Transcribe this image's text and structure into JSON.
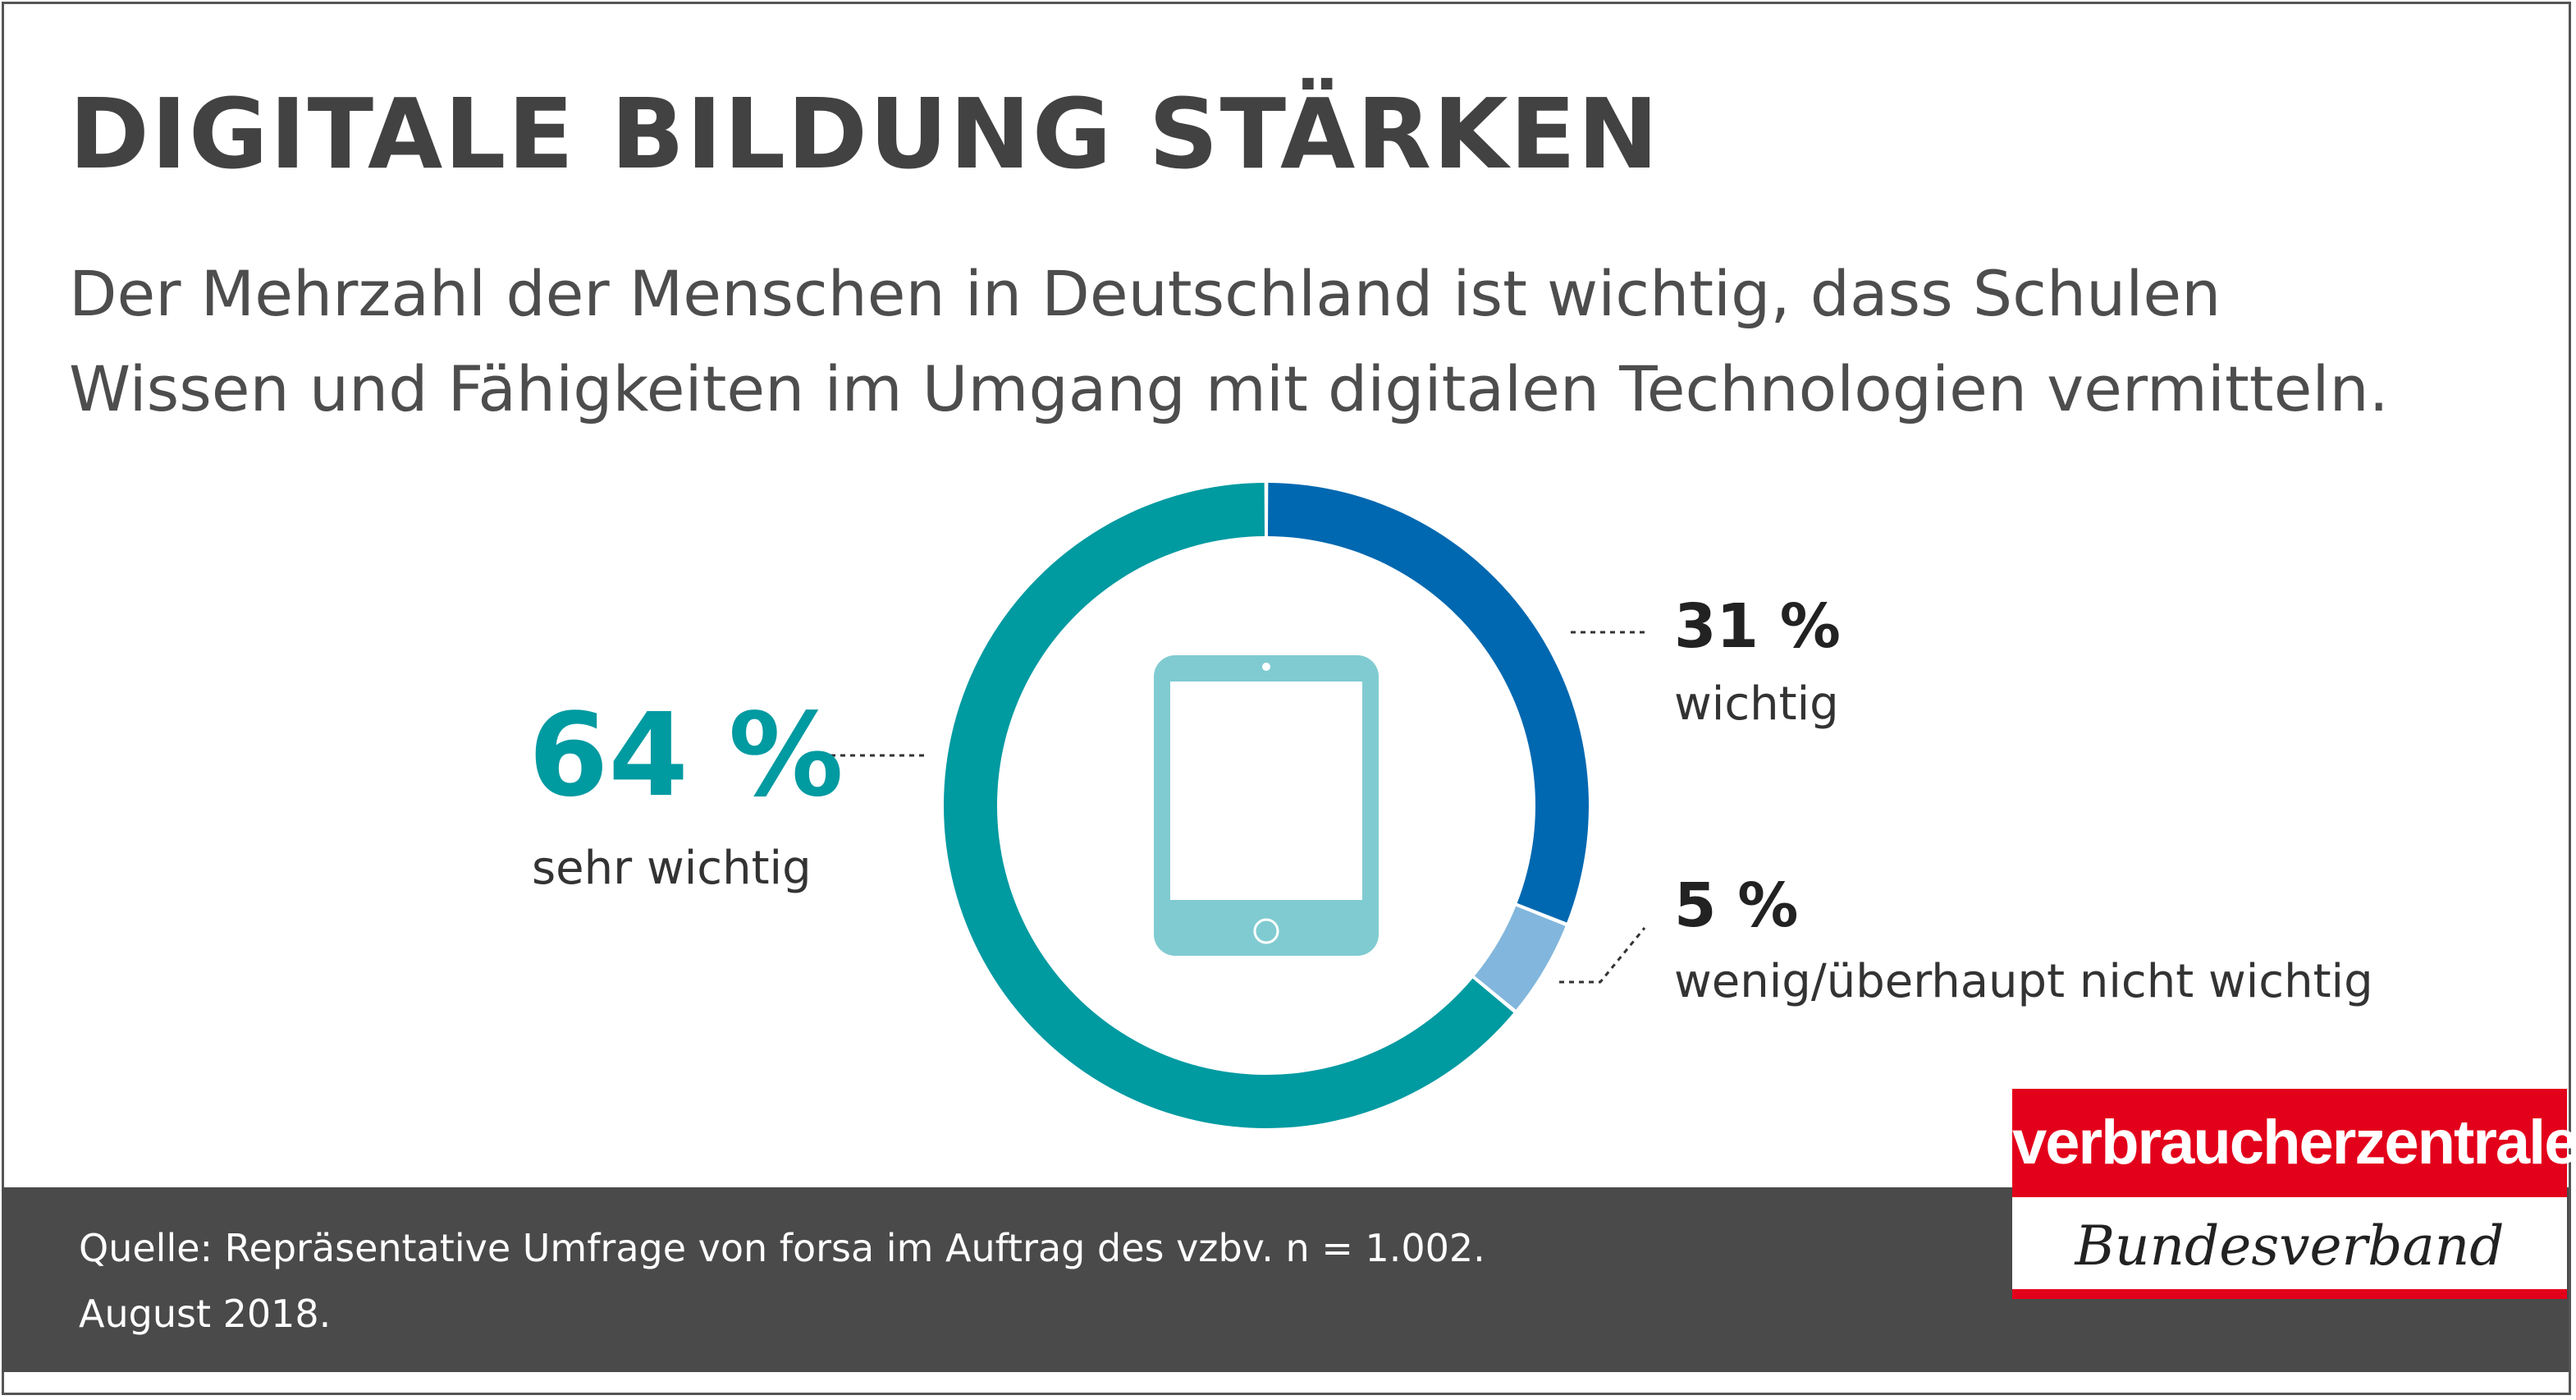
{
  "header": {
    "title": "DIGITALE BILDUNG STÄRKEN",
    "subtitle_line1": "Der Mehrzahl der Menschen in Deutschland ist wichtig, dass Schulen",
    "subtitle_line2": "Wissen und Fähigkeiten im Umgang mit digitalen Technologien vermitteln."
  },
  "chart_data": {
    "type": "pie",
    "style": "donut",
    "slices": [
      {
        "label": "wichtig",
        "value": 31,
        "value_text": "31 %",
        "color": "#0068b0"
      },
      {
        "label": "wenig/überhaupt nicht wichtig",
        "value": 5,
        "value_text": "5 %",
        "color": "#82b6dc"
      },
      {
        "label": "sehr wichtig",
        "value": 64,
        "value_text": "64 %",
        "color": "#009aa1"
      }
    ],
    "center_icon": "tablet-icon",
    "center_icon_color": "#80cbd1"
  },
  "footer": {
    "source_line1": "Quelle: Repräsentative Umfrage von forsa im Auftrag des vzbv. n = 1.002.",
    "source_line2": "August 2018."
  },
  "logo": {
    "top": "verbraucherzentrale",
    "bottom": "Bundesverband",
    "color": "#e3001b"
  },
  "colors": {
    "title": "#424242",
    "text": "#4d4d4d",
    "footer_bg": "#4a4a4a",
    "border": "#555555"
  }
}
